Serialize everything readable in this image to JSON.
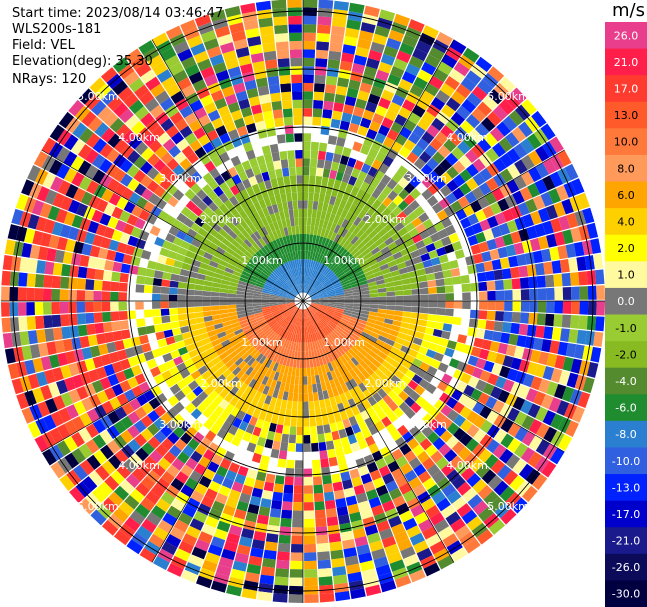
{
  "header": {
    "start_time": "Start time: 2023/08/14 03:46:47",
    "instrument": "WLS200s-181",
    "field": "Field: VEL",
    "elevation": "Elevation(deg): 35.30",
    "nrays": "NRays: 120"
  },
  "ppi": {
    "ring_labels": [
      "1.00km",
      "2.00km",
      "3.00km",
      "4.00km",
      "5.00km"
    ],
    "nrays": 120
  },
  "colorbar": {
    "unit": "m/s",
    "ticks": [
      "26.0",
      "21.0",
      "17.0",
      "13.0",
      "10.0",
      "8.0",
      "6.0",
      "4.0",
      "2.0",
      "1.0",
      "0.0",
      "-1.0",
      "-2.0",
      "-4.0",
      "-6.0",
      "-8.0",
      "-10.0",
      "-13.0",
      "-17.0",
      "-21.0",
      "-26.0",
      "-30.0"
    ],
    "colors": [
      "#e83e8c",
      "#ff1f4a",
      "#ff3b2f",
      "#ff5a2a",
      "#ff7a3a",
      "#ff9a5a",
      "#ffa500",
      "#ffd000",
      "#ffff00",
      "#fff9a0",
      "#777777",
      "#99cc33",
      "#88bb22",
      "#558b2f",
      "#1f8c2f",
      "#2a7fd0",
      "#3060e0",
      "#0022ff",
      "#0000cc",
      "#1a1a8c",
      "#0b0b5a",
      "#000040"
    ]
  }
}
